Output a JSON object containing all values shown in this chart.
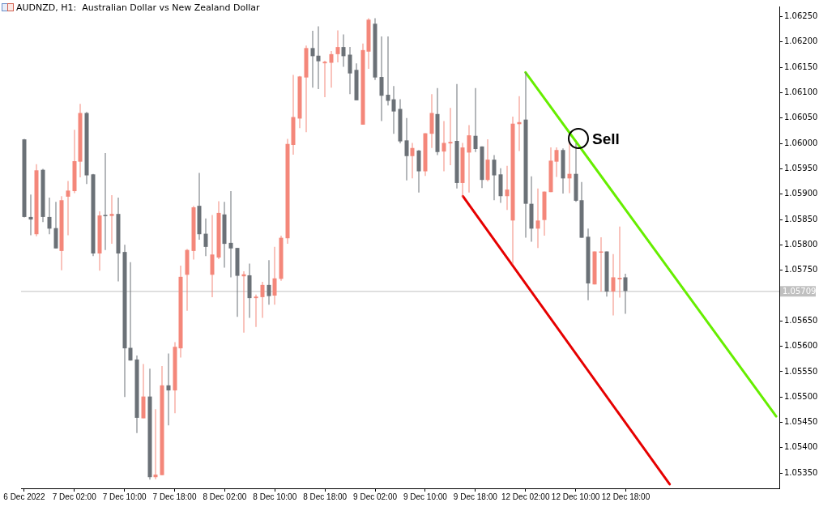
{
  "chart_data": {
    "type": "candlestick",
    "title": "AUDNZD, H1:  Australian Dollar vs New Zealand Dollar",
    "categories": [
      "6 Dec 2022",
      null,
      null,
      null,
      null,
      null,
      null,
      null,
      "7 Dec 02:00",
      null,
      null,
      null,
      null,
      null,
      null,
      null,
      "7 Dec 10:00",
      null,
      null,
      null,
      null,
      null,
      null,
      null,
      "7 Dec 18:00",
      null,
      null,
      null,
      null,
      null,
      null,
      null,
      "8 Dec 02:00",
      null,
      null,
      null,
      null,
      null,
      null,
      null,
      "8 Dec 10:00",
      null,
      null,
      null,
      null,
      null,
      null,
      null,
      "8 Dec 18:00",
      null,
      null,
      null,
      null,
      null,
      null,
      null,
      "9 Dec 02:00",
      null,
      null,
      null,
      null,
      null,
      null,
      null,
      "9 Dec 10:00",
      null,
      null,
      null,
      null,
      null,
      null,
      null,
      "9 Dec 18:00",
      null,
      null,
      null,
      null,
      null,
      null,
      null,
      "12 Dec 02:00",
      null,
      null,
      null,
      null,
      null,
      null,
      null,
      "12 Dec 10:00",
      null,
      null,
      null,
      null,
      null,
      null,
      null,
      "12 Dec 18:00",
      null,
      null,
      null,
      null,
      null,
      null,
      null,
      null,
      null,
      null,
      null,
      null,
      null,
      null,
      null,
      null,
      null,
      null,
      null,
      null,
      null,
      null,
      null,
      null
    ],
    "series": [
      {
        "ohlc": [
          [
            1.06008,
            1.06009,
            1.05854,
            1.05855
          ],
          [
            1.05855,
            1.05899,
            1.05819,
            1.0585
          ],
          [
            1.05821,
            1.05959,
            1.05817,
            1.05947
          ],
          [
            1.05948,
            1.0595,
            1.05845,
            1.05855
          ],
          [
            1.05855,
            1.05893,
            1.05821,
            1.05832
          ],
          [
            1.05833,
            1.05885,
            1.05793,
            1.05793
          ],
          [
            1.05788,
            1.05896,
            1.0575,
            1.05888
          ],
          [
            1.05895,
            1.05926,
            1.05819,
            1.05907
          ],
          [
            1.05906,
            1.06027,
            1.05902,
            1.05965
          ],
          [
            1.05964,
            1.06078,
            1.05933,
            1.0606
          ],
          [
            1.0606,
            1.06062,
            1.0592,
            1.05937
          ],
          [
            1.05939,
            1.0594,
            1.05778,
            1.05783
          ],
          [
            1.05783,
            1.05866,
            1.05749,
            1.05858
          ],
          [
            1.05859,
            1.05981,
            1.0579,
            1.05857
          ],
          [
            1.05857,
            1.05898,
            1.05802,
            1.05861
          ],
          [
            1.05861,
            1.05893,
            1.05728,
            1.05783
          ],
          [
            1.05786,
            1.058,
            1.055,
            1.05596
          ],
          [
            1.05597,
            1.05766,
            1.05572,
            1.05572
          ],
          [
            1.05574,
            1.05582,
            1.05429,
            1.05459
          ],
          [
            1.05458,
            1.05565,
            1.05458,
            1.05501
          ],
          [
            1.05501,
            1.05556,
            1.05337,
            1.05342
          ],
          [
            1.05342,
            1.05476,
            1.05338,
            1.05347
          ],
          [
            1.05346,
            1.05561,
            1.05346,
            1.05523
          ],
          [
            1.05523,
            1.05586,
            1.05444,
            1.05513
          ],
          [
            1.05513,
            1.05608,
            1.05468,
            1.05599
          ],
          [
            1.05596,
            1.05759,
            1.05578,
            1.05737
          ],
          [
            1.05741,
            1.05792,
            1.0567,
            1.0579
          ],
          [
            1.05788,
            1.05877,
            1.05771,
            1.05874
          ],
          [
            1.05877,
            1.05942,
            1.0581,
            1.05821
          ],
          [
            1.05822,
            1.05852,
            1.05778,
            1.05796
          ],
          [
            1.05741,
            1.05859,
            1.05697,
            1.05781
          ],
          [
            1.05775,
            1.05886,
            1.05772,
            1.05863
          ],
          [
            1.0586,
            1.05885,
            1.05755,
            1.05802
          ],
          [
            1.05804,
            1.05906,
            1.05736,
            1.05793
          ],
          [
            1.05794,
            1.05794,
            1.05658,
            1.05739
          ],
          [
            1.05738,
            1.05748,
            1.05627,
            1.05742
          ],
          [
            1.0574,
            1.05763,
            1.05656,
            1.05695
          ],
          [
            1.05695,
            1.05702,
            1.05638,
            1.05698
          ],
          [
            1.05697,
            1.05727,
            1.05656,
            1.05721
          ],
          [
            1.05721,
            1.0577,
            1.05682,
            1.05699
          ],
          [
            1.057,
            1.05796,
            1.05682,
            1.05734
          ],
          [
            1.05733,
            1.05818,
            1.05729,
            1.05814
          ],
          [
            1.05813,
            1.06009,
            1.05802,
            1.05999
          ],
          [
            1.05997,
            1.06135,
            1.05978,
            1.06052
          ],
          [
            1.06049,
            1.06133,
            1.0603,
            1.06132
          ],
          [
            1.0613,
            1.06193,
            1.06022,
            1.06188
          ],
          [
            1.06188,
            1.06222,
            1.0611,
            1.06172
          ],
          [
            1.06173,
            1.06231,
            1.06107,
            1.06162
          ],
          [
            1.06158,
            1.06163,
            1.06091,
            1.06161
          ],
          [
            1.06159,
            1.06182,
            1.0611,
            1.06176
          ],
          [
            1.06176,
            1.06223,
            1.0616,
            1.0619
          ],
          [
            1.0619,
            1.06215,
            1.06151,
            1.06172
          ],
          [
            1.06175,
            1.0619,
            1.06097,
            1.06138
          ],
          [
            1.06145,
            1.06158,
            1.06085,
            1.06085
          ],
          [
            1.06037,
            1.06197,
            1.06037,
            1.06184
          ],
          [
            1.06181,
            1.06247,
            1.06147,
            1.06244
          ],
          [
            1.06236,
            1.06247,
            1.06125,
            1.0613
          ],
          [
            1.06131,
            1.06211,
            1.06044,
            1.06094
          ],
          [
            1.06096,
            1.06211,
            1.06075,
            1.06084
          ],
          [
            1.06087,
            1.06113,
            1.06019,
            1.06063
          ],
          [
            1.06068,
            1.06087,
            1.06,
            1.06004
          ],
          [
            1.06006,
            1.0605,
            1.05927,
            1.05975
          ],
          [
            1.05975,
            1.06001,
            1.05931,
            1.05991
          ],
          [
            1.05986,
            1.05987,
            1.05903,
            1.05945
          ],
          [
            1.05945,
            1.0602,
            1.05936,
            1.0602
          ],
          [
            1.06019,
            1.06097,
            1.05991,
            1.0606
          ],
          [
            1.06058,
            1.06109,
            1.05977,
            1.05983
          ],
          [
            1.05984,
            1.06044,
            1.05945,
            1.06001
          ],
          [
            1.06,
            1.0607,
            1.05957,
            1.06003
          ],
          [
            1.06005,
            1.06117,
            1.05911,
            1.05922
          ],
          [
            1.05922,
            1.06001,
            1.05894,
            1.05992
          ],
          [
            1.05982,
            1.06036,
            1.05903,
            1.06016
          ],
          [
            1.06015,
            1.06109,
            1.05983,
            1.05989
          ],
          [
            1.05994,
            1.05994,
            1.05912,
            1.05928
          ],
          [
            1.05928,
            1.06008,
            1.05925,
            1.05968
          ],
          [
            1.05968,
            1.05977,
            1.05888,
            1.05937
          ],
          [
            1.05939,
            1.05951,
            1.05883,
            1.05896
          ],
          [
            1.05896,
            1.05956,
            1.05869,
            1.05909
          ],
          [
            1.05848,
            1.06053,
            1.05762,
            1.06039
          ],
          [
            1.06038,
            1.06093,
            1.05985,
            1.06042
          ],
          [
            1.06047,
            1.0614,
            1.05814,
            1.05881
          ],
          [
            1.05881,
            1.05935,
            1.05806,
            1.05832
          ],
          [
            1.05832,
            1.05911,
            1.05794,
            1.05848
          ],
          [
            1.05849,
            1.05905,
            1.05818,
            1.05905
          ],
          [
            1.05904,
            1.05992,
            1.05904,
            1.05966
          ],
          [
            1.05964,
            1.05992,
            1.05934,
            1.05987
          ],
          [
            1.05987,
            1.0599,
            1.05901,
            1.05931
          ],
          [
            1.05931,
            1.06003,
            1.05902,
            1.0594
          ],
          [
            1.0594,
            1.06,
            1.05885,
            1.05887
          ],
          [
            1.05888,
            1.05924,
            1.05814,
            1.05814
          ],
          [
            1.05816,
            1.05832,
            1.05691,
            1.05724
          ],
          [
            1.05722,
            1.05787,
            1.05722,
            1.05787
          ],
          [
            1.05785,
            1.05815,
            1.05708,
            1.05787
          ],
          [
            1.05787,
            1.05787,
            1.05698,
            1.05708
          ],
          [
            1.05708,
            1.05782,
            1.05661,
            1.05736
          ],
          [
            1.05732,
            1.05836,
            1.05696,
            1.05735
          ],
          [
            1.05736,
            1.05743,
            1.05664,
            1.05709
          ],
          null,
          null,
          null,
          null,
          null,
          null,
          null,
          null,
          null,
          null,
          null,
          null,
          null,
          null,
          null,
          null,
          null,
          null,
          null,
          null,
          null,
          null,
          null,
          null
        ],
        "colors": [
          "#6b7177",
          "#6b7177",
          "#f4877a",
          "#6b7177",
          "#6b7177",
          "#6b7177",
          "#f4877a",
          "#f4877a",
          "#f4877a",
          "#f4877a",
          "#6b7177",
          "#6b7177",
          "#f4877a",
          "#6b7177",
          "#f4877a",
          "#6b7177",
          "#6b7177",
          "#6b7177",
          "#6b7177",
          "#f4877a",
          "#6b7177",
          "#f4877a",
          "#f4877a",
          "#6b7177",
          "#f4877a",
          "#f4877a",
          "#f4877a",
          "#f4877a",
          "#6b7177",
          "#6b7177",
          "#f4877a",
          "#f4877a",
          "#6b7177",
          "#6b7177",
          "#6b7177",
          "#f4877a",
          "#6b7177",
          "#f4877a",
          "#f4877a",
          "#6b7177",
          "#f4877a",
          "#f4877a",
          "#f4877a",
          "#f4877a",
          "#f4877a",
          "#f4877a",
          "#6b7177",
          "#6b7177",
          "#f4877a",
          "#f4877a",
          "#f4877a",
          "#6b7177",
          "#6b7177",
          "#6b7177",
          "#f4877a",
          "#f4877a",
          "#6b7177",
          "#6b7177",
          "#6b7177",
          "#6b7177",
          "#6b7177",
          "#6b7177",
          "#f4877a",
          "#6b7177",
          "#f4877a",
          "#f4877a",
          "#6b7177",
          "#f4877a",
          "#f4877a",
          "#6b7177",
          "#f4877a",
          "#f4877a",
          "#6b7177",
          "#6b7177",
          "#f4877a",
          "#6b7177",
          "#6b7177",
          "#f4877a",
          "#f4877a",
          "#f4877a",
          "#6b7177",
          "#6b7177",
          "#f4877a",
          "#f4877a",
          "#f4877a",
          "#f4877a",
          "#6b7177",
          "#f4877a",
          "#6b7177",
          "#6b7177",
          "#6b7177",
          "#f4877a",
          "#f4877a",
          "#6b7177",
          "#f4877a",
          "#f4877a",
          "#6b7177",
          null,
          null,
          null,
          null,
          null,
          null,
          null,
          null,
          null,
          null,
          null,
          null,
          null,
          null,
          null,
          null,
          null,
          null,
          null,
          null,
          null,
          null,
          null,
          null
        ]
      },
      {
        "type": "line",
        "color": "#66ee00",
        "values": [
          null,
          null,
          null,
          null,
          null,
          null,
          null,
          null,
          null,
          null,
          null,
          null,
          null,
          null,
          null,
          null,
          null,
          null,
          null,
          null,
          null,
          null,
          null,
          null,
          null,
          null,
          null,
          null,
          null,
          null,
          null,
          null,
          null,
          null,
          null,
          null,
          null,
          null,
          null,
          null,
          null,
          null,
          null,
          null,
          null,
          null,
          null,
          null,
          null,
          null,
          null,
          null,
          null,
          null,
          null,
          null,
          null,
          null,
          null,
          null,
          null,
          null,
          null,
          null,
          null,
          null,
          null,
          null,
          null,
          null,
          null,
          null,
          null,
          null,
          null,
          null,
          null,
          null,
          null,
          null,
          1.0614,
          null,
          null,
          null,
          null,
          null,
          null,
          null,
          null,
          null,
          null,
          null,
          null,
          null,
          null,
          null,
          null,
          null,
          null,
          null,
          null,
          null,
          null,
          null,
          null,
          null,
          null,
          null,
          null,
          null,
          null,
          null,
          null,
          null,
          null,
          null,
          null,
          null,
          null,
          null,
          1.05462
        ]
      },
      {
        "type": "line",
        "color": "#e60000",
        "values": [
          null,
          null,
          null,
          null,
          null,
          null,
          null,
          null,
          null,
          null,
          null,
          null,
          null,
          null,
          null,
          null,
          null,
          null,
          null,
          null,
          null,
          null,
          null,
          null,
          null,
          null,
          null,
          null,
          null,
          null,
          null,
          null,
          null,
          null,
          null,
          null,
          null,
          null,
          null,
          null,
          null,
          null,
          null,
          null,
          null,
          null,
          null,
          null,
          null,
          null,
          null,
          null,
          null,
          null,
          null,
          null,
          null,
          null,
          null,
          null,
          null,
          null,
          null,
          null,
          null,
          null,
          null,
          null,
          null,
          null,
          1.05896,
          null,
          null,
          null,
          null,
          null,
          null,
          null,
          null,
          null,
          null,
          null,
          null,
          null,
          null,
          null,
          null,
          null,
          null,
          null,
          null,
          null,
          null,
          null,
          null,
          null,
          null,
          null,
          null,
          null,
          null,
          null,
          null,
          1.05328,
          null,
          null,
          null,
          null,
          null,
          null,
          null,
          null,
          null,
          null,
          null,
          null,
          null,
          null,
          null,
          null,
          null
        ]
      }
    ],
    "ylim": [
      1.0532,
      1.0627
    ],
    "yticks": [
      {
        "value": 1.0535,
        "label": "1.05350"
      },
      {
        "value": 1.054,
        "label": "1.05400"
      },
      {
        "value": 1.0545,
        "label": "1.05450"
      },
      {
        "value": 1.055,
        "label": "1.05500"
      },
      {
        "value": 1.0555,
        "label": "1.05550"
      },
      {
        "value": 1.056,
        "label": "1.05600"
      },
      {
        "value": 1.0565,
        "label": "1.05650"
      },
      {
        "value": 1.057,
        "label": null
      },
      {
        "value": 1.0575,
        "label": "1.05750"
      },
      {
        "value": 1.058,
        "label": "1.05800"
      },
      {
        "value": 1.0585,
        "label": "1.05850"
      },
      {
        "value": 1.059,
        "label": "1.05900"
      },
      {
        "value": 1.0595,
        "label": "1.05950"
      },
      {
        "value": 1.06,
        "label": "1.06000"
      },
      {
        "value": 1.0605,
        "label": "1.06050"
      },
      {
        "value": 1.061,
        "label": "1.06100"
      },
      {
        "value": 1.0615,
        "label": "1.06150"
      },
      {
        "value": 1.062,
        "label": "1.06200"
      },
      {
        "value": 1.0625,
        "label": "1.06250"
      }
    ],
    "ref_lines": [
      {
        "axis": "y",
        "value": 1.05709,
        "label": "1.05709",
        "color": "#c0c0c0"
      }
    ],
    "annotations": [
      "Sell"
    ]
  }
}
